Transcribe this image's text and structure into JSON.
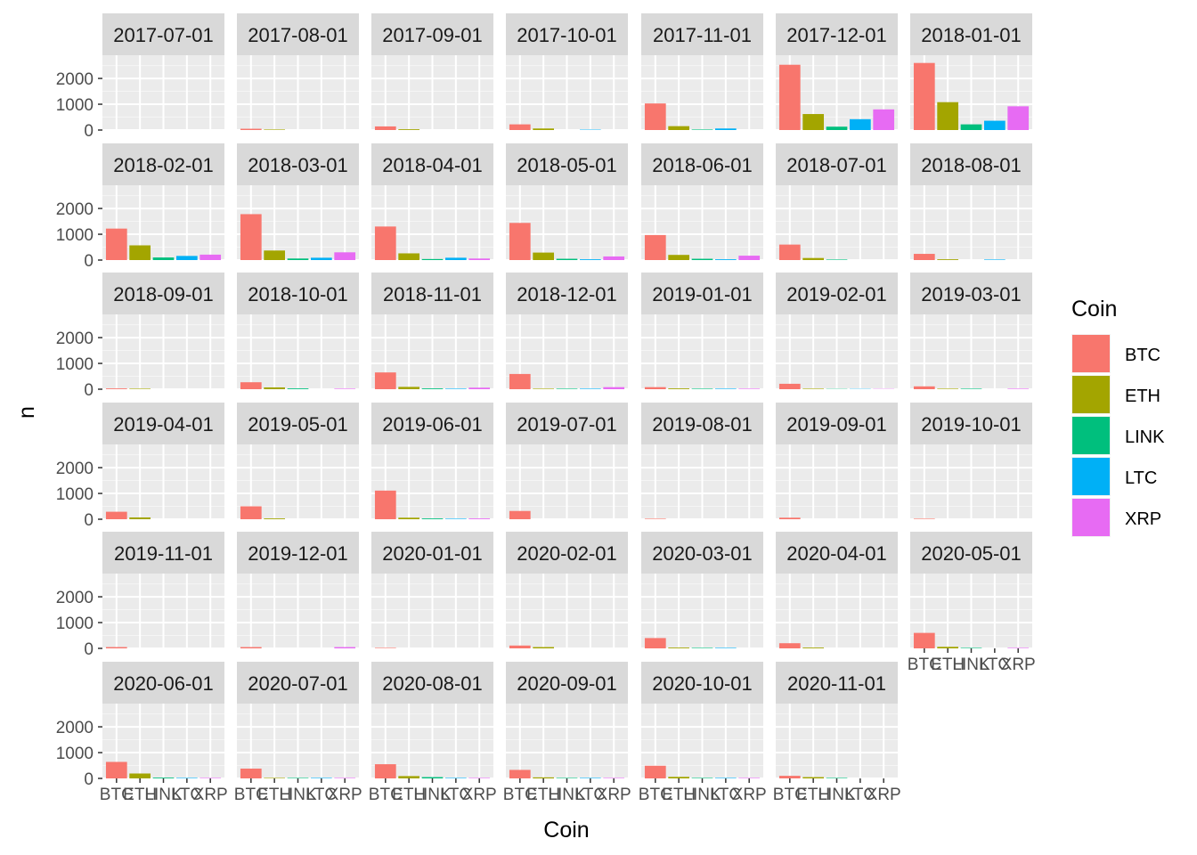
{
  "chart_data": {
    "type": "bar",
    "facet_by": "month",
    "xlabel": "Coin",
    "ylabel": "n",
    "ylim": [
      0,
      2900
    ],
    "yticks": [
      0,
      1000,
      2000
    ],
    "categories": [
      "BTC",
      "ETH",
      "LINK",
      "LTC",
      "XRP"
    ],
    "legend": {
      "title": "Coin",
      "position": "right"
    },
    "colors": {
      "BTC": "#F8766D",
      "ETH": "#A3A500",
      "LINK": "#00BF7D",
      "LTC": "#00B0F6",
      "XRP": "#E76BF3"
    },
    "grid": true,
    "panels": [
      {
        "label": "2017-07-01",
        "values": [
          0,
          0,
          0,
          0,
          0
        ]
      },
      {
        "label": "2017-08-01",
        "values": [
          50,
          20,
          0,
          0,
          0
        ]
      },
      {
        "label": "2017-09-01",
        "values": [
          140,
          30,
          0,
          0,
          0
        ]
      },
      {
        "label": "2017-10-01",
        "values": [
          220,
          60,
          0,
          15,
          0
        ]
      },
      {
        "label": "2017-11-01",
        "values": [
          1030,
          150,
          20,
          60,
          0
        ]
      },
      {
        "label": "2017-12-01",
        "values": [
          2530,
          620,
          130,
          420,
          800
        ]
      },
      {
        "label": "2018-01-01",
        "values": [
          2600,
          1080,
          220,
          360,
          920
        ]
      },
      {
        "label": "2018-02-01",
        "values": [
          1220,
          570,
          100,
          160,
          210
        ]
      },
      {
        "label": "2018-03-01",
        "values": [
          1780,
          370,
          60,
          90,
          300
        ]
      },
      {
        "label": "2018-04-01",
        "values": [
          1300,
          260,
          40,
          90,
          60
        ]
      },
      {
        "label": "2018-05-01",
        "values": [
          1440,
          290,
          50,
          30,
          140
        ]
      },
      {
        "label": "2018-06-01",
        "values": [
          970,
          200,
          50,
          30,
          170
        ]
      },
      {
        "label": "2018-07-01",
        "values": [
          600,
          80,
          20,
          0,
          0
        ]
      },
      {
        "label": "2018-08-01",
        "values": [
          240,
          30,
          0,
          20,
          0
        ]
      },
      {
        "label": "2018-09-01",
        "values": [
          30,
          20,
          0,
          0,
          0
        ]
      },
      {
        "label": "2018-10-01",
        "values": [
          270,
          70,
          30,
          0,
          20
        ]
      },
      {
        "label": "2018-11-01",
        "values": [
          650,
          90,
          30,
          20,
          60
        ]
      },
      {
        "label": "2018-12-01",
        "values": [
          590,
          20,
          20,
          20,
          80
        ]
      },
      {
        "label": "2019-01-01",
        "values": [
          80,
          30,
          20,
          20,
          20
        ]
      },
      {
        "label": "2019-02-01",
        "values": [
          210,
          20,
          10,
          10,
          10
        ]
      },
      {
        "label": "2019-03-01",
        "values": [
          110,
          20,
          20,
          0,
          20
        ]
      },
      {
        "label": "2019-04-01",
        "values": [
          290,
          70,
          0,
          0,
          0
        ]
      },
      {
        "label": "2019-05-01",
        "values": [
          500,
          30,
          0,
          0,
          0
        ]
      },
      {
        "label": "2019-06-01",
        "values": [
          1110,
          60,
          30,
          20,
          30
        ]
      },
      {
        "label": "2019-07-01",
        "values": [
          320,
          0,
          0,
          0,
          0
        ]
      },
      {
        "label": "2019-08-01",
        "values": [
          20,
          0,
          0,
          0,
          0
        ]
      },
      {
        "label": "2019-09-01",
        "values": [
          60,
          0,
          0,
          0,
          0
        ]
      },
      {
        "label": "2019-10-01",
        "values": [
          20,
          0,
          0,
          0,
          0
        ]
      },
      {
        "label": "2019-11-01",
        "values": [
          50,
          0,
          0,
          0,
          0
        ]
      },
      {
        "label": "2019-12-01",
        "values": [
          50,
          0,
          0,
          0,
          50
        ]
      },
      {
        "label": "2020-01-01",
        "values": [
          20,
          0,
          0,
          0,
          0
        ]
      },
      {
        "label": "2020-02-01",
        "values": [
          110,
          50,
          0,
          0,
          0
        ]
      },
      {
        "label": "2020-03-01",
        "values": [
          400,
          30,
          20,
          20,
          0
        ]
      },
      {
        "label": "2020-04-01",
        "values": [
          200,
          30,
          0,
          0,
          0
        ]
      },
      {
        "label": "2020-05-01",
        "values": [
          600,
          60,
          20,
          0,
          20
        ]
      },
      {
        "label": "2020-06-01",
        "values": [
          640,
          190,
          30,
          20,
          20
        ]
      },
      {
        "label": "2020-07-01",
        "values": [
          380,
          20,
          20,
          20,
          20
        ]
      },
      {
        "label": "2020-08-01",
        "values": [
          550,
          90,
          50,
          20,
          20
        ]
      },
      {
        "label": "2020-09-01",
        "values": [
          330,
          40,
          20,
          20,
          20
        ]
      },
      {
        "label": "2020-10-01",
        "values": [
          490,
          60,
          20,
          20,
          20
        ]
      },
      {
        "label": "2020-11-01",
        "values": [
          100,
          50,
          20,
          0,
          0
        ]
      }
    ]
  }
}
